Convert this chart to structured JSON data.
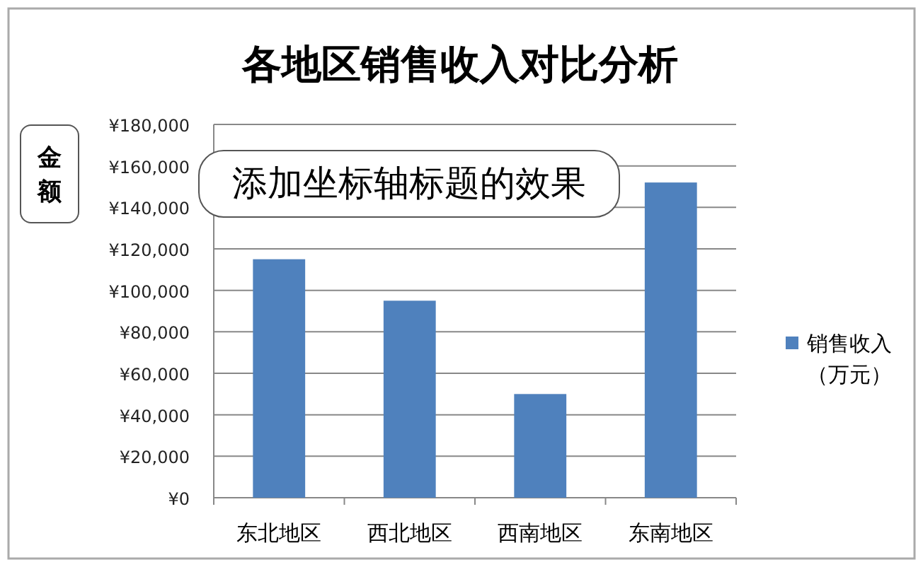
{
  "chart_data": {
    "type": "bar",
    "title": "各地区销售收入对比分析",
    "ylabel": "金额",
    "categories": [
      "东北地区",
      "西北地区",
      "西南地区",
      "东南地区"
    ],
    "series": [
      {
        "name": "销售收入（万元）",
        "color": "#4f81bd",
        "values": [
          115000,
          95000,
          50000,
          152000
        ]
      }
    ],
    "ylim": [
      0,
      180000
    ],
    "yticks": [
      {
        "value": 0,
        "label": "¥0"
      },
      {
        "value": 20000,
        "label": "¥20,000"
      },
      {
        "value": 40000,
        "label": "¥40,000"
      },
      {
        "value": 60000,
        "label": "¥60,000"
      },
      {
        "value": 80000,
        "label": "¥80,000"
      },
      {
        "value": 100000,
        "label": "¥100,000"
      },
      {
        "value": 120000,
        "label": "¥120,000"
      },
      {
        "value": 140000,
        "label": "¥140,000"
      },
      {
        "value": 160000,
        "label": "¥160,000"
      },
      {
        "value": 180000,
        "label": "¥180,000"
      }
    ],
    "grid": "y",
    "legend": "right",
    "annotations": [
      "添加坐标轴标题的效果"
    ]
  }
}
